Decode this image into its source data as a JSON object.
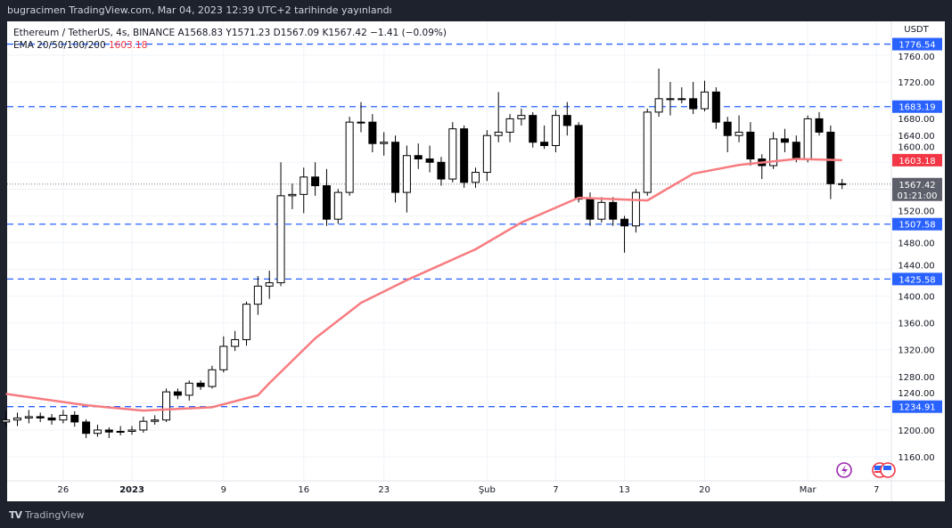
{
  "published": "bugracimen TradingView.com, Mar 04, 2023 12:39 UTC+2 tarihinde yayınlandı",
  "legend": {
    "symbol_line": "Ethereum / TetherUS, 4s, BINANCE  A1568.83  Y1571.23  D1567.09  K1567.42  −1.41 (−0.09%)",
    "ema_label": "EMA 20/50/100/200",
    "ema_value": "1603.18"
  },
  "footer": {
    "logo_text": "TradingView"
  },
  "colors": {
    "background": "#1e222d",
    "candle": "#000000",
    "ema": "#f77c80",
    "level_line": "#2962ff",
    "ema_badge": "#f23645",
    "price_badge": "#5d606b"
  },
  "chart_data": {
    "type": "candlestick",
    "title": "",
    "currency": "USDT",
    "ylim": [
      1130,
      1800
    ],
    "y_ticks": [
      1160,
      1200,
      1240,
      1280,
      1320,
      1360,
      1400,
      1440,
      1480,
      1520,
      1560,
      1600,
      1640,
      1680,
      1720,
      1760
    ],
    "y_tick_labels": [
      "1160.00",
      "1200.00",
      "1240.00",
      "1280.00",
      "1320.00",
      "1360.00",
      "1400.00",
      "1440.00",
      "1480.00",
      "1520.00",
      "1560.00",
      "1600.00",
      "1640.00",
      "1680.00",
      "1720.00",
      "1760.00"
    ],
    "x_ticks": [
      {
        "date": "2022-12-26",
        "label": "26"
      },
      {
        "date": "2023-01-01",
        "label": "2023",
        "bold": true
      },
      {
        "date": "2023-01-09",
        "label": "9"
      },
      {
        "date": "2023-01-16",
        "label": "16"
      },
      {
        "date": "2023-01-23",
        "label": "23"
      },
      {
        "date": "2023-02-01",
        "label": "Şub"
      },
      {
        "date": "2023-02-07",
        "label": "7"
      },
      {
        "date": "2023-02-13",
        "label": "13"
      },
      {
        "date": "2023-02-20",
        "label": "20"
      },
      {
        "date": "2023-03-01",
        "label": "Mar"
      },
      {
        "date": "2023-03-07",
        "label": "7"
      }
    ],
    "grid": true,
    "levels": [
      {
        "price": 1776.54,
        "label": "1776.54"
      },
      {
        "price": 1683.19,
        "label": "1683.19"
      },
      {
        "price": 1507.58,
        "label": "1507.58"
      },
      {
        "price": 1425.58,
        "label": "1425.58"
      },
      {
        "price": 1234.91,
        "label": "1234.91"
      }
    ],
    "last_price": {
      "price": 1567.42,
      "label": "1567.42",
      "countdown": "01:21:00"
    },
    "ema_badge": {
      "price": 1603.18,
      "label": "1603.18"
    },
    "ohlc": [
      [
        "2022-12-21",
        1212,
        1228,
        1205,
        1215
      ],
      [
        "2022-12-22",
        1215,
        1226,
        1206,
        1218
      ],
      [
        "2022-12-23",
        1218,
        1230,
        1210,
        1220
      ],
      [
        "2022-12-24",
        1220,
        1226,
        1212,
        1218
      ],
      [
        "2022-12-25",
        1218,
        1224,
        1208,
        1215
      ],
      [
        "2022-12-26",
        1215,
        1230,
        1210,
        1222
      ],
      [
        "2022-12-27",
        1222,
        1228,
        1205,
        1212
      ],
      [
        "2022-12-28",
        1212,
        1216,
        1188,
        1195
      ],
      [
        "2022-12-29",
        1195,
        1208,
        1190,
        1200
      ],
      [
        "2022-12-30",
        1200,
        1204,
        1188,
        1197
      ],
      [
        "2022-12-31",
        1197,
        1206,
        1192,
        1198
      ],
      [
        "2023-01-01",
        1198,
        1206,
        1193,
        1200
      ],
      [
        "2023-01-02",
        1200,
        1220,
        1196,
        1213
      ],
      [
        "2023-01-03",
        1213,
        1222,
        1208,
        1215
      ],
      [
        "2023-01-04",
        1215,
        1262,
        1212,
        1257
      ],
      [
        "2023-01-05",
        1257,
        1262,
        1246,
        1252
      ],
      [
        "2023-01-06",
        1252,
        1274,
        1244,
        1270
      ],
      [
        "2023-01-07",
        1270,
        1274,
        1260,
        1265
      ],
      [
        "2023-01-08",
        1265,
        1296,
        1262,
        1290
      ],
      [
        "2023-01-09",
        1290,
        1340,
        1286,
        1325
      ],
      [
        "2023-01-10",
        1325,
        1348,
        1318,
        1335
      ],
      [
        "2023-01-11",
        1335,
        1392,
        1326,
        1388
      ],
      [
        "2023-01-12",
        1388,
        1430,
        1372,
        1415
      ],
      [
        "2023-01-13",
        1415,
        1438,
        1396,
        1420
      ],
      [
        "2023-01-14",
        1420,
        1600,
        1415,
        1550
      ],
      [
        "2023-01-15",
        1550,
        1568,
        1530,
        1552
      ],
      [
        "2023-01-16",
        1552,
        1592,
        1524,
        1578
      ],
      [
        "2023-01-17",
        1578,
        1600,
        1550,
        1565
      ],
      [
        "2023-01-18",
        1565,
        1590,
        1505,
        1515
      ],
      [
        "2023-01-19",
        1515,
        1560,
        1508,
        1555
      ],
      [
        "2023-01-20",
        1555,
        1668,
        1550,
        1660
      ],
      [
        "2023-01-21",
        1660,
        1690,
        1645,
        1660
      ],
      [
        "2023-01-22",
        1660,
        1672,
        1615,
        1628
      ],
      [
        "2023-01-23",
        1628,
        1645,
        1610,
        1630
      ],
      [
        "2023-01-24",
        1630,
        1640,
        1540,
        1555
      ],
      [
        "2023-01-25",
        1555,
        1625,
        1525,
        1610
      ],
      [
        "2023-01-26",
        1610,
        1628,
        1590,
        1605
      ],
      [
        "2023-01-27",
        1605,
        1625,
        1585,
        1600
      ],
      [
        "2023-01-28",
        1600,
        1608,
        1565,
        1575
      ],
      [
        "2023-01-29",
        1575,
        1660,
        1570,
        1650
      ],
      [
        "2023-01-30",
        1650,
        1655,
        1562,
        1570
      ],
      [
        "2023-01-31",
        1570,
        1592,
        1562,
        1585
      ],
      [
        "2023-02-01",
        1585,
        1648,
        1572,
        1640
      ],
      [
        "2023-02-02",
        1640,
        1705,
        1630,
        1645
      ],
      [
        "2023-02-03",
        1645,
        1672,
        1630,
        1665
      ],
      [
        "2023-02-04",
        1665,
        1680,
        1655,
        1670
      ],
      [
        "2023-02-05",
        1670,
        1675,
        1622,
        1630
      ],
      [
        "2023-02-06",
        1630,
        1655,
        1620,
        1625
      ],
      [
        "2023-02-07",
        1625,
        1678,
        1615,
        1670
      ],
      [
        "2023-02-08",
        1670,
        1690,
        1640,
        1655
      ],
      [
        "2023-02-09",
        1655,
        1660,
        1540,
        1545
      ],
      [
        "2023-02-10",
        1545,
        1555,
        1505,
        1515
      ],
      [
        "2023-02-11",
        1515,
        1548,
        1510,
        1540
      ],
      [
        "2023-02-12",
        1540,
        1548,
        1505,
        1515
      ],
      [
        "2023-02-13",
        1515,
        1520,
        1465,
        1505
      ],
      [
        "2023-02-14",
        1505,
        1560,
        1495,
        1555
      ],
      [
        "2023-02-15",
        1555,
        1680,
        1550,
        1675
      ],
      [
        "2023-02-16",
        1675,
        1740,
        1668,
        1695
      ],
      [
        "2023-02-17",
        1695,
        1720,
        1670,
        1695
      ],
      [
        "2023-02-18",
        1695,
        1712,
        1688,
        1695
      ],
      [
        "2023-02-19",
        1695,
        1720,
        1672,
        1680
      ],
      [
        "2023-02-20",
        1680,
        1722,
        1676,
        1705
      ],
      [
        "2023-02-21",
        1705,
        1712,
        1650,
        1660
      ],
      [
        "2023-02-22",
        1660,
        1668,
        1615,
        1640
      ],
      [
        "2023-02-23",
        1640,
        1670,
        1630,
        1645
      ],
      [
        "2023-02-24",
        1645,
        1660,
        1595,
        1605
      ],
      [
        "2023-02-25",
        1605,
        1612,
        1575,
        1595
      ],
      [
        "2023-02-26",
        1595,
        1645,
        1590,
        1635
      ],
      [
        "2023-02-27",
        1635,
        1650,
        1615,
        1630
      ],
      [
        "2023-02-28",
        1630,
        1640,
        1600,
        1605
      ],
      [
        "2023-03-01",
        1605,
        1670,
        1600,
        1665
      ],
      [
        "2023-03-02",
        1665,
        1675,
        1640,
        1645
      ],
      [
        "2023-03-03",
        1645,
        1655,
        1545,
        1568
      ],
      [
        "2023-03-04",
        1568,
        1575,
        1560,
        1567.42
      ]
    ],
    "ema": [
      [
        "2022-12-21",
        1254
      ],
      [
        "2022-12-28",
        1237
      ],
      [
        "2023-01-02",
        1229
      ],
      [
        "2023-01-08",
        1234
      ],
      [
        "2023-01-12",
        1252
      ],
      [
        "2023-01-13",
        1270
      ],
      [
        "2023-01-17",
        1337
      ],
      [
        "2023-01-21",
        1390
      ],
      [
        "2023-01-25",
        1424
      ],
      [
        "2023-01-31",
        1470
      ],
      [
        "2023-02-04",
        1510
      ],
      [
        "2023-02-09",
        1547
      ],
      [
        "2023-02-12",
        1545
      ],
      [
        "2023-02-15",
        1543
      ],
      [
        "2023-02-19",
        1583
      ],
      [
        "2023-02-23",
        1596
      ],
      [
        "2023-02-28",
        1605
      ],
      [
        "2023-03-04",
        1603.18
      ]
    ]
  }
}
